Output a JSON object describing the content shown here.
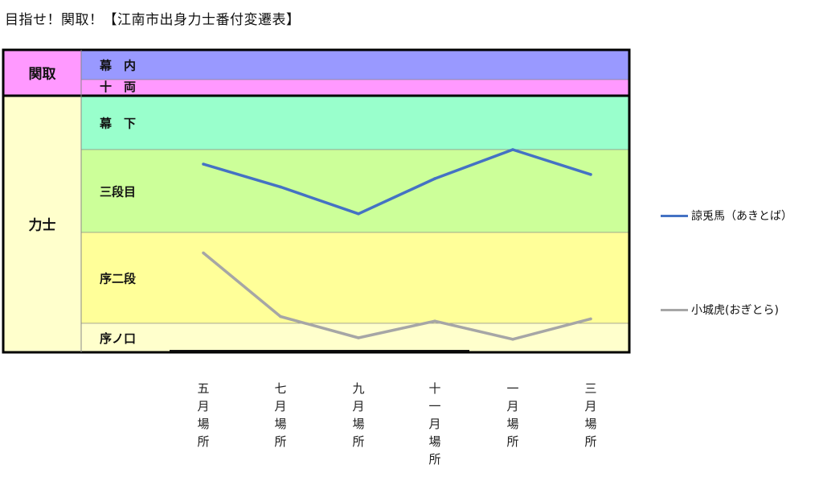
{
  "page": {
    "title": "目指せ！関取！【江南市出身力士番付変遷表】"
  },
  "chart_data": {
    "type": "line",
    "categories": [
      "五月場所",
      "七月場所",
      "九月場所",
      "十一月場所",
      "一月場所",
      "三月場所"
    ],
    "y_axis": {
      "bands": [
        {
          "label": "幕　内",
          "top": 0,
          "bottom": 1,
          "color": "#9999ff"
        },
        {
          "label": "十　両",
          "top": 1,
          "bottom": 2,
          "color": "#ff99ff"
        },
        {
          "label": "幕　下",
          "top": 2,
          "bottom": 4,
          "color": "#99ffcc"
        },
        {
          "label": "三段目",
          "top": 4,
          "bottom": 6,
          "color": "#ccff99"
        },
        {
          "label": "序二段",
          "top": 6,
          "bottom": 8,
          "color": "#ffff99"
        },
        {
          "label": "序ノ口",
          "top": 8,
          "bottom": 9,
          "color": "#ffffcc"
        }
      ],
      "groups": [
        {
          "label": "関取",
          "top": 0,
          "bottom": 2,
          "color": "#ff99ff"
        },
        {
          "label": "力士",
          "top": 2,
          "bottom": 9,
          "color": "#ffffcc"
        }
      ],
      "direction": "higher rank at top",
      "range": [
        0,
        9
      ]
    },
    "series": [
      {
        "name": "諒兎馬（あきとば）",
        "color": "#4472c4",
        "values": [
          4.35,
          4.9,
          5.55,
          4.7,
          4.0,
          4.6
        ]
      },
      {
        "name": "小城虎(おぎとら)",
        "color": "#a6a6a6",
        "values": [
          6.45,
          7.85,
          8.5,
          7.95,
          8.55,
          7.9
        ]
      }
    ],
    "legend_position": "right"
  }
}
